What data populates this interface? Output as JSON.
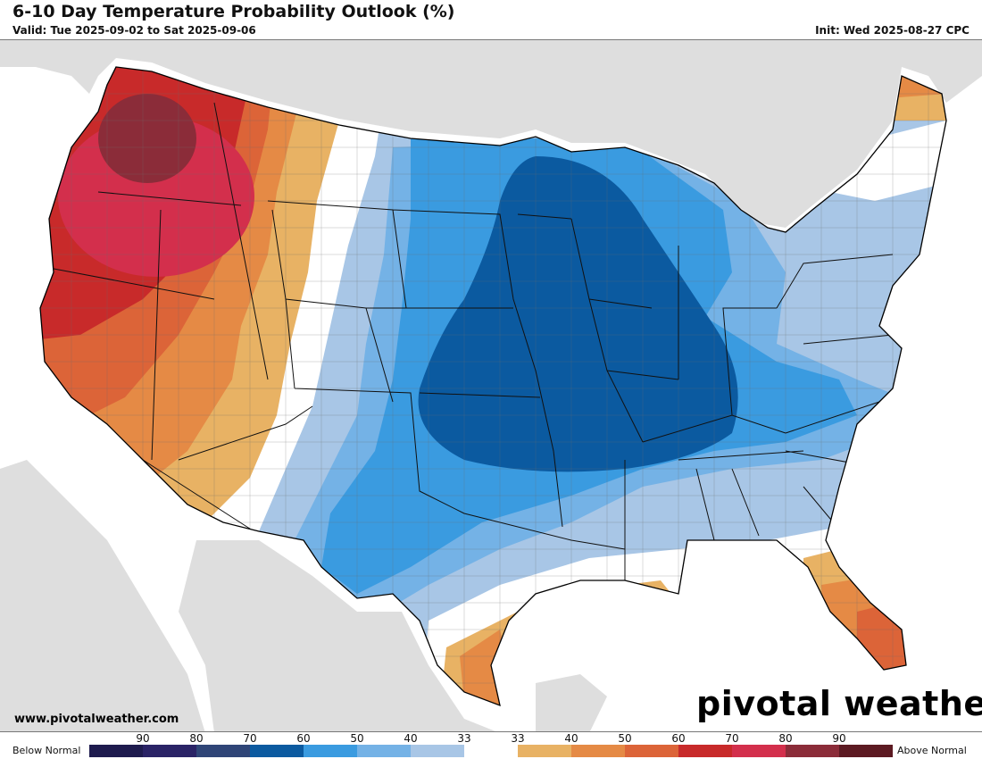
{
  "header": {
    "title": "6-10 Day Temperature Probability Outlook (%)",
    "valid": "Valid: Tue 2025-09-02 to Sat 2025-09-06",
    "init": "Init: Wed 2025-08-27 CPC"
  },
  "footer": {
    "website": "www.pivotalweather.com",
    "brand": "pivotal weather"
  },
  "legend": {
    "below_label": "Below Normal",
    "above_label": "Above Normal",
    "ticks": [
      "90",
      "80",
      "70",
      "60",
      "50",
      "40",
      "33",
      "33",
      "40",
      "50",
      "60",
      "70",
      "80",
      "90"
    ],
    "colors": [
      "#1e1b4e",
      "#2a2366",
      "#2f4577",
      "#0b5aa0",
      "#3a9be0",
      "#74b2e6",
      "#a8c6e6",
      "#ffffff",
      "#e8b264",
      "#e58a45",
      "#dc6438",
      "#c82a2a",
      "#d32f4c",
      "#8b2c39",
      "#5c1a22"
    ]
  },
  "map_colors": {
    "ocean": "#ffffff",
    "land_outside": "#dedede",
    "border": "#111111",
    "county": "#6a6a6a"
  }
}
